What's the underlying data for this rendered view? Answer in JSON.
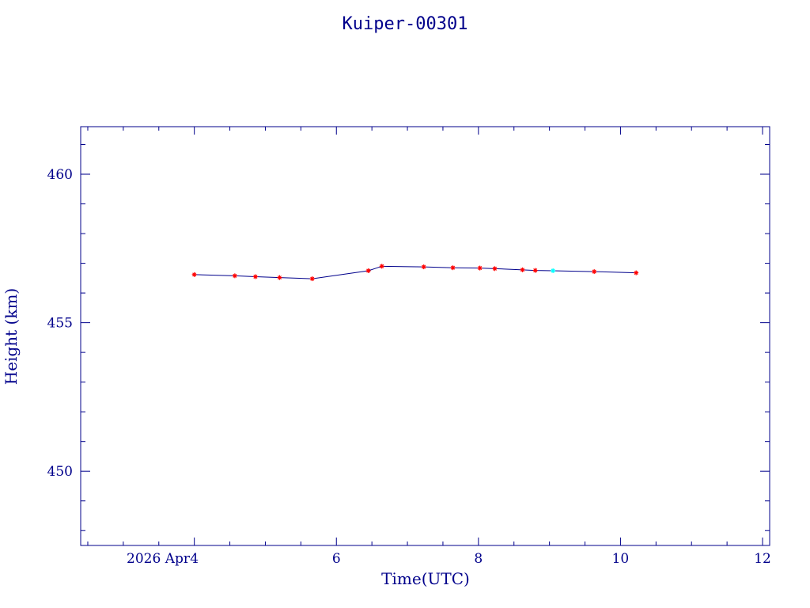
{
  "chart_data": {
    "type": "line",
    "title": "Kuiper-00301",
    "xlabel": "Time(UTC)",
    "ylabel": "Height (km)",
    "x_date_prefix": "2026 Apr",
    "xlim": [
      2.4,
      12.1
    ],
    "ylim": [
      447.5,
      461.6
    ],
    "x_ticks": [
      {
        "value": 4,
        "label": "4"
      },
      {
        "value": 6,
        "label": "6"
      },
      {
        "value": 8,
        "label": "8"
      },
      {
        "value": 10,
        "label": "10"
      },
      {
        "value": 12,
        "label": "12"
      }
    ],
    "y_ticks": [
      {
        "value": 450,
        "label": "450"
      },
      {
        "value": 455,
        "label": "455"
      },
      {
        "value": 460,
        "label": "460"
      }
    ],
    "x_minor_step": 0.5,
    "y_minor_step": 1,
    "series": [
      {
        "line_color": "#00008b",
        "marker_color": "#ff0000",
        "highlight_color": "#00ffff",
        "points": [
          {
            "x": 4.0,
            "y": 456.62
          },
          {
            "x": 4.57,
            "y": 456.58
          },
          {
            "x": 4.86,
            "y": 456.55
          },
          {
            "x": 5.2,
            "y": 456.52
          },
          {
            "x": 5.66,
            "y": 456.48
          },
          {
            "x": 6.45,
            "y": 456.75
          },
          {
            "x": 6.64,
            "y": 456.9
          },
          {
            "x": 7.23,
            "y": 456.88
          },
          {
            "x": 7.64,
            "y": 456.85
          },
          {
            "x": 8.02,
            "y": 456.84
          },
          {
            "x": 8.23,
            "y": 456.82
          },
          {
            "x": 8.62,
            "y": 456.78
          },
          {
            "x": 8.8,
            "y": 456.76
          },
          {
            "x": 9.05,
            "y": 456.75,
            "highlight": true
          },
          {
            "x": 9.63,
            "y": 456.72
          },
          {
            "x": 10.22,
            "y": 456.68
          }
        ]
      }
    ]
  }
}
